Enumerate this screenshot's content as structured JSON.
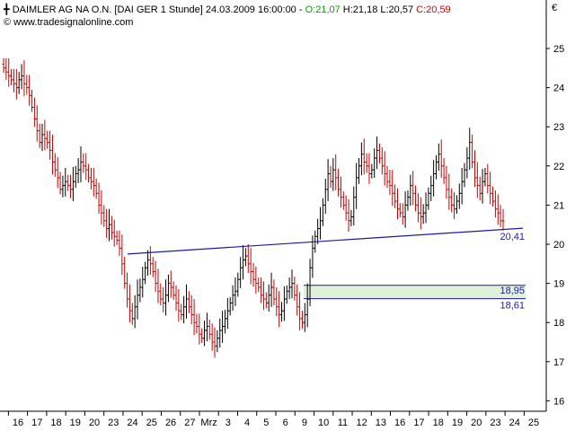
{
  "header": {
    "title": "DAIMLER AG NA O.N. [DAI GER  1 Stunde] 24.03.2009 16:00:00 - ",
    "open_label": "O:21,07",
    "high_label": " H:21,18",
    "low_label": " L:20,57",
    "close_label": " C:20,59",
    "copyright": "© www.tradesignalonline.com",
    "currency": "€"
  },
  "colors": {
    "up_bar": "#000000",
    "down_bar": "#cc0000",
    "trendline": "#1a1aa6",
    "zone_fill": "#dff2d8",
    "zone_border": "#1a1aa6",
    "open_color": "#00a000",
    "high_color": "#000000",
    "low_color": "#000000",
    "close_color": "#cc0000"
  },
  "chart_data": {
    "type": "ohlc",
    "title": "DAIMLER AG NA O.N. [DAI GER  1 Stunde]",
    "ylim": [
      15.8,
      25.6
    ],
    "y_ticks": [
      "16",
      "17",
      "18",
      "19",
      "20",
      "21",
      "22",
      "23",
      "24",
      "25"
    ],
    "x_ticks": [
      "16",
      "17",
      "18",
      "19",
      "20",
      "23",
      "24",
      "25",
      "26",
      "27",
      "Mrz",
      "3",
      "4",
      "5",
      "6",
      "9",
      "10",
      "11",
      "12",
      "13",
      "16",
      "17",
      "18",
      "19",
      "20",
      "23",
      "24",
      "25"
    ],
    "bars_per_day": 9,
    "closes": [
      24.5,
      24.4,
      24.3,
      24.2,
      24.1,
      24.0,
      24.2,
      24.3,
      24.1,
      24.0,
      23.8,
      23.5,
      23.2,
      22.9,
      22.6,
      22.8,
      22.7,
      22.6,
      22.4,
      22.1,
      21.9,
      21.7,
      21.4,
      21.5,
      21.6,
      21.5,
      21.4,
      21.6,
      21.8,
      21.9,
      22.1,
      22.0,
      21.9,
      21.7,
      21.6,
      21.5,
      21.3,
      21.0,
      20.8,
      20.6,
      20.4,
      20.5,
      20.3,
      20.2,
      20.1,
      19.9,
      19.5,
      19.0,
      18.6,
      18.3,
      18.1,
      18.4,
      18.7,
      18.9,
      19.1,
      19.4,
      19.6,
      19.5,
      19.3,
      19.0,
      18.8,
      18.6,
      18.5,
      18.7,
      19.0,
      18.9,
      18.7,
      18.5,
      18.3,
      18.2,
      18.4,
      18.6,
      18.4,
      18.2,
      18.0,
      17.9,
      17.7,
      17.6,
      17.8,
      17.9,
      17.7,
      17.5,
      17.4,
      17.6,
      17.8,
      17.9,
      18.1,
      18.3,
      18.5,
      18.7,
      18.8,
      19.1,
      19.4,
      19.6,
      19.7,
      19.5,
      19.3,
      19.1,
      19.0,
      18.9,
      18.7,
      18.6,
      18.5,
      18.7,
      18.9,
      18.6,
      18.4,
      18.2,
      18.3,
      18.6,
      18.8,
      18.9,
      19.0,
      18.7,
      18.4,
      18.1,
      18.0,
      18.2,
      18.6,
      19.4,
      19.9,
      20.2,
      20.4,
      20.6,
      21.0,
      21.4,
      21.8,
      21.6,
      21.9,
      21.7,
      21.4,
      21.2,
      21.0,
      20.8,
      20.6,
      20.7,
      21.2,
      21.7,
      22.0,
      22.3,
      22.1,
      22.0,
      21.8,
      21.9,
      22.2,
      22.4,
      22.2,
      22.0,
      21.8,
      21.6,
      21.5,
      21.3,
      21.1,
      20.9,
      20.8,
      20.7,
      21.0,
      21.2,
      21.5,
      21.3,
      21.0,
      20.8,
      20.7,
      20.8,
      21.0,
      21.3,
      21.5,
      21.8,
      22.1,
      22.3,
      22.0,
      21.7,
      21.4,
      21.2,
      21.0,
      20.9,
      21.1,
      21.3,
      21.6,
      21.9,
      22.2,
      22.6,
      22.1,
      21.7,
      21.5,
      21.3,
      21.6,
      21.8,
      21.5,
      21.3,
      21.1,
      20.9,
      20.8,
      20.6,
      20.59
    ],
    "series": [
      {
        "name": "trendline",
        "from_y": 19.75,
        "to_y": 20.41,
        "label": "20,41"
      },
      {
        "name": "zone_top",
        "y": 18.95,
        "label": "18,95"
      },
      {
        "name": "zone_bottom",
        "y": 18.61,
        "label": "18,61"
      }
    ]
  }
}
